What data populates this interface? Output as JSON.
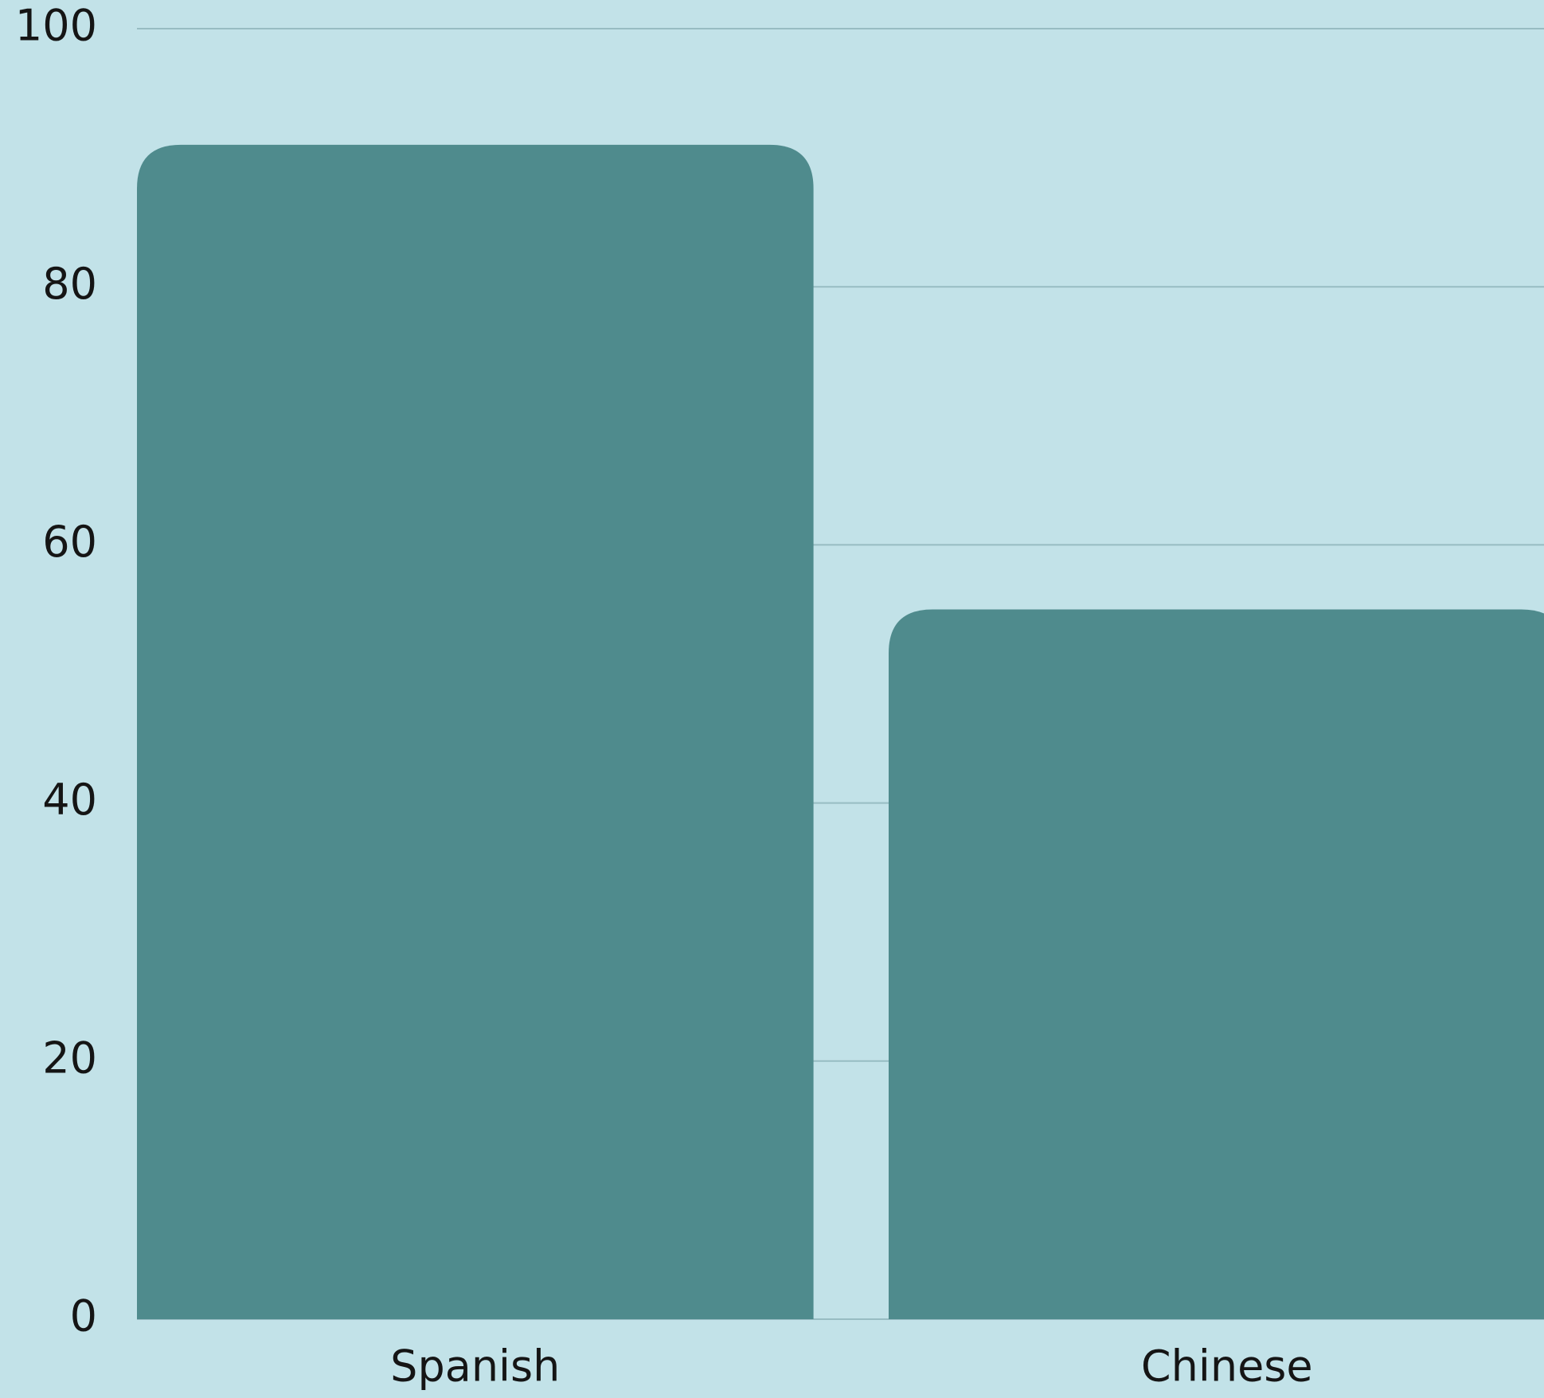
{
  "chart_data": {
    "type": "bar",
    "categories": [
      "Spanish",
      "Chinese"
    ],
    "values": [
      91,
      55
    ],
    "color": "#4f8b8d",
    "ylim": [
      0,
      100
    ],
    "yticks": [
      0,
      20,
      40,
      60,
      80,
      100
    ],
    "grid": true
  }
}
